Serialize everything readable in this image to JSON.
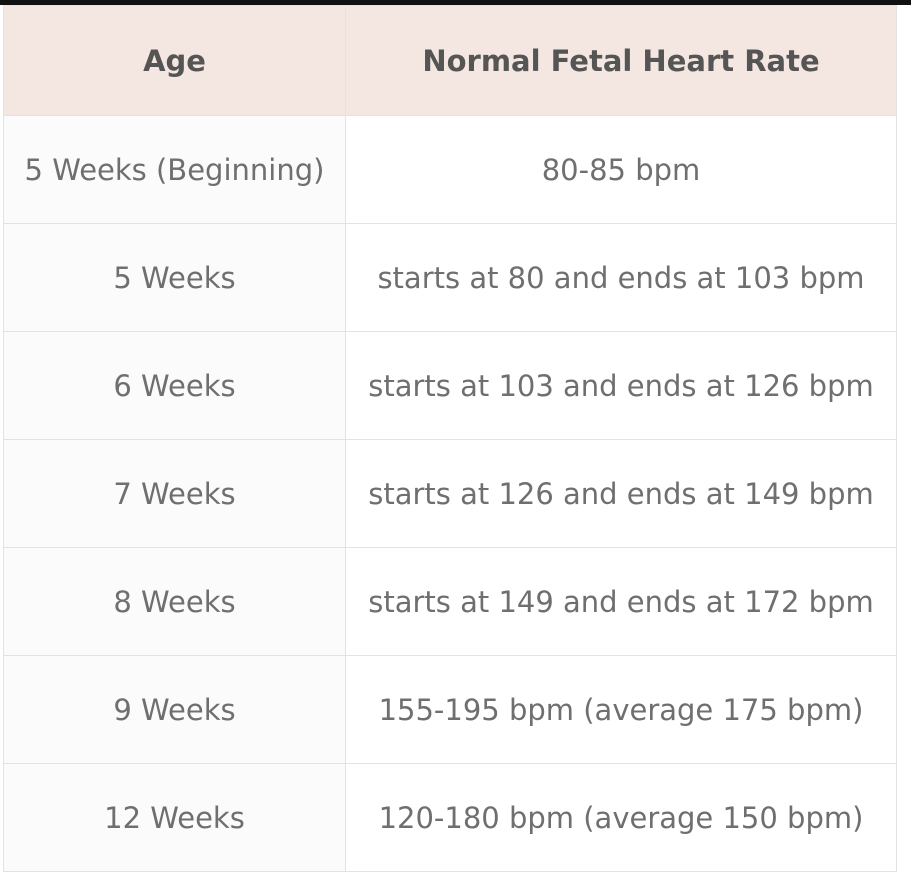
{
  "table": {
    "header": [
      "Age",
      "Normal Fetal Heart Rate"
    ],
    "rows": [
      [
        "5 Weeks (Beginning)",
        "80-85 bpm"
      ],
      [
        "5 Weeks",
        "starts at 80 and ends at 103 bpm"
      ],
      [
        "6 Weeks",
        "starts at 103 and ends at 126 bpm"
      ],
      [
        "7 Weeks",
        "starts at 126 and ends at 149 bpm"
      ],
      [
        "8 Weeks",
        "starts at 149 and ends at 172 bpm"
      ],
      [
        "9 Weeks",
        "155-195 bpm (average 175 bpm)"
      ],
      [
        "12 Weeks",
        "120-180 bpm (average 150 bpm)"
      ]
    ]
  }
}
